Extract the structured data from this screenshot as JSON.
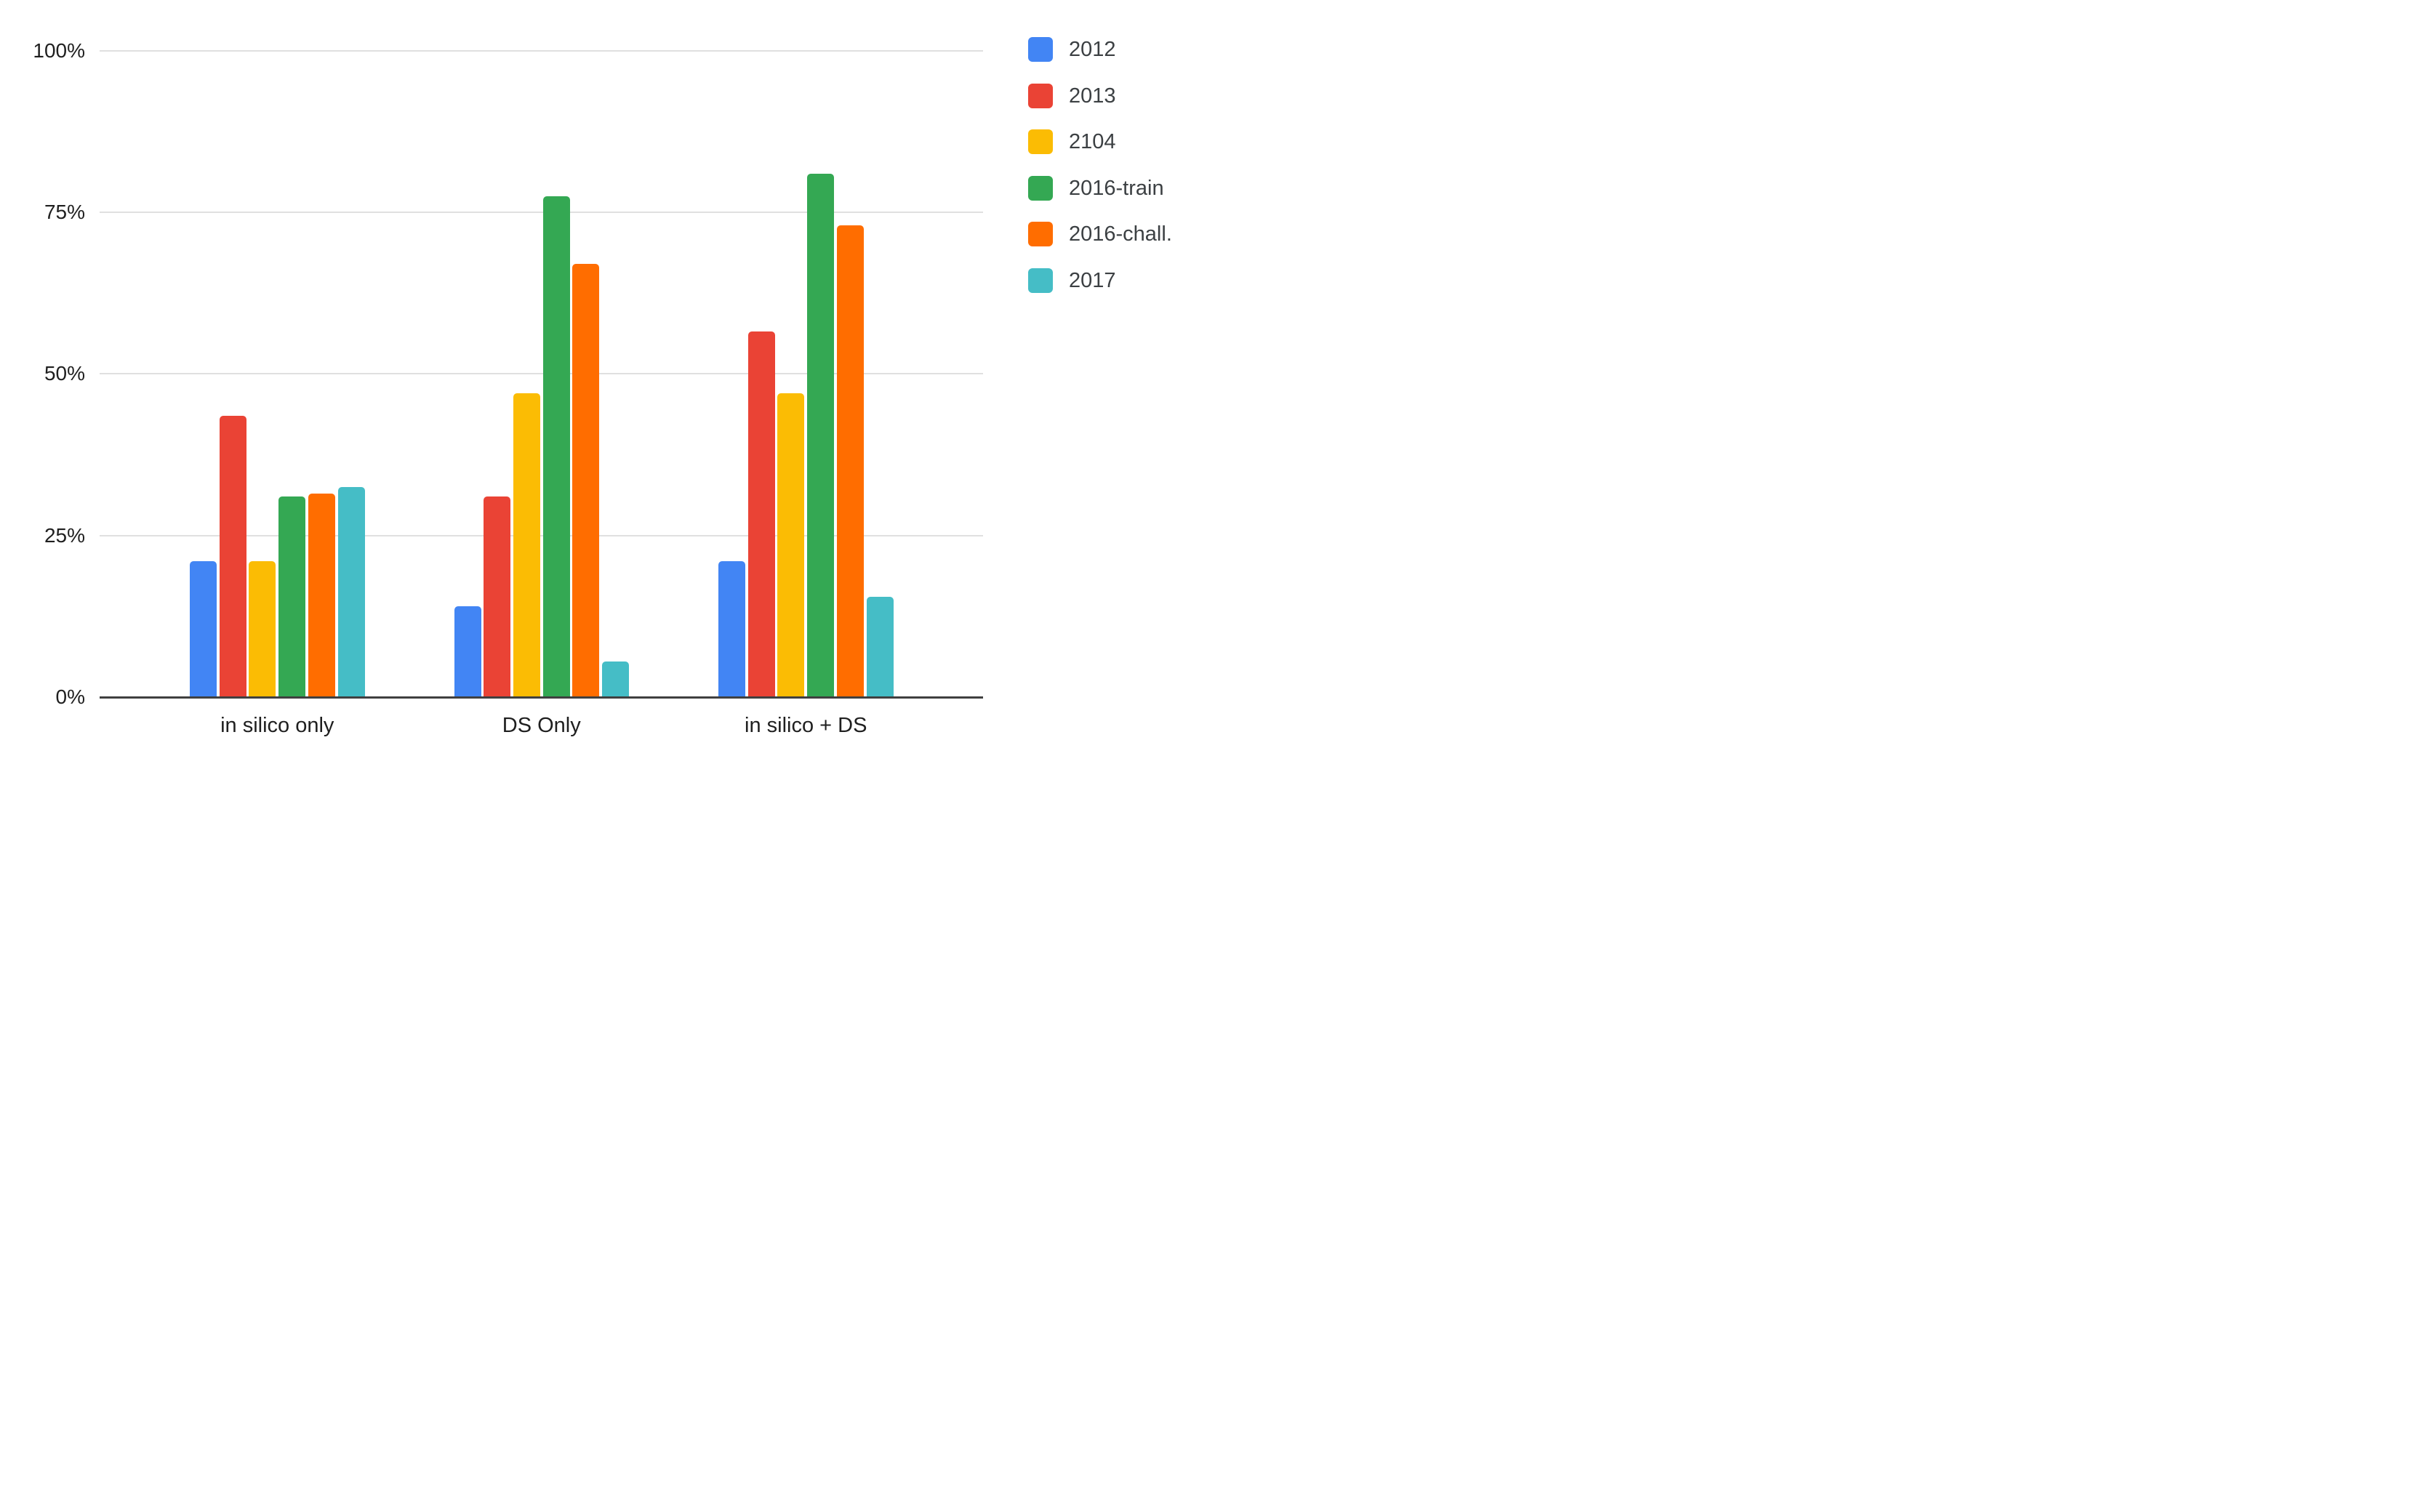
{
  "chart_data": {
    "type": "bar",
    "title": "",
    "xlabel": "",
    "ylabel": "",
    "categories": [
      "in silico only",
      "DS Only",
      "in silico + DS"
    ],
    "series": [
      {
        "name": "2012",
        "color": "#4285F4",
        "values": [
          21,
          14,
          21
        ]
      },
      {
        "name": "2013",
        "color": "#EA4335",
        "values": [
          43.5,
          31,
          56.5
        ]
      },
      {
        "name": "2104",
        "color": "#FBBC04",
        "values": [
          21,
          47,
          47
        ]
      },
      {
        "name": "2016-train",
        "color": "#34A853",
        "values": [
          31,
          77.5,
          81
        ]
      },
      {
        "name": "2016-chall.",
        "color": "#FF6D00",
        "values": [
          31.5,
          67,
          73
        ]
      },
      {
        "name": "2017",
        "color": "#45BDC6",
        "values": [
          32.5,
          5.5,
          15.5
        ]
      }
    ],
    "y_ticks": [
      {
        "value": 0,
        "label": "0%"
      },
      {
        "value": 25,
        "label": "25%"
      },
      {
        "value": 50,
        "label": "50%"
      },
      {
        "value": 75,
        "label": "75%"
      },
      {
        "value": 100,
        "label": "100%"
      }
    ],
    "ylim": [
      0,
      100
    ],
    "grid": true,
    "legend_position": "right"
  },
  "colors": {
    "background": "#ffffff",
    "gridline": "#e0e0e0",
    "axis": "#404040",
    "tick_text": "#1f1f1f",
    "legend_text": "#3c4043"
  }
}
